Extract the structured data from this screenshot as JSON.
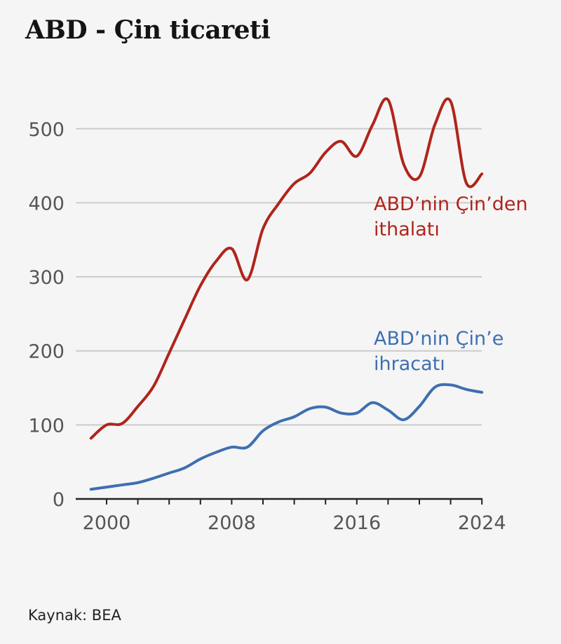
{
  "chart_data": {
    "type": "line",
    "title": "ABD - Çin ticareti",
    "xlabel": "",
    "ylabel": "",
    "x": [
      1999,
      2000,
      2001,
      2002,
      2003,
      2004,
      2005,
      2006,
      2007,
      2008,
      2009,
      2010,
      2011,
      2012,
      2013,
      2014,
      2015,
      2016,
      2017,
      2018,
      2019,
      2020,
      2021,
      2022,
      2023,
      2024
    ],
    "series": [
      {
        "name": "ABD'nin Çin'den ithalatı",
        "label_lines": [
          "ABD’nin Çin’den",
          "ithalatı"
        ],
        "color": "#b0241b",
        "values": [
          82,
          100,
          102,
          125,
          152,
          197,
          243,
          288,
          321,
          338,
          296,
          365,
          399,
          426,
          440,
          468,
          483,
          463,
          505,
          539,
          452,
          435,
          506,
          537,
          427,
          439
        ]
      },
      {
        "name": "ABD'nin Çin'e ihracatı",
        "label_lines": [
          "ABD’nin Çin’e",
          "ihracatı"
        ],
        "color": "#3e6fb0",
        "values": [
          13,
          16,
          19,
          22,
          28,
          35,
          42,
          54,
          63,
          70,
          70,
          92,
          104,
          111,
          122,
          124,
          116,
          116,
          130,
          120,
          107,
          125,
          151,
          154,
          148,
          144
        ]
      }
    ],
    "xlim": [
      1999,
      2024
    ],
    "ylim": [
      0,
      550
    ],
    "yticks": [
      0,
      100,
      200,
      300,
      400,
      500
    ],
    "xticks_labeled": [
      2000,
      2008,
      2016,
      2024
    ],
    "xtick_marks_every": 2,
    "grid": true,
    "legend": "inline-labels"
  },
  "footer": {
    "source": "Kaynak: BEA"
  }
}
